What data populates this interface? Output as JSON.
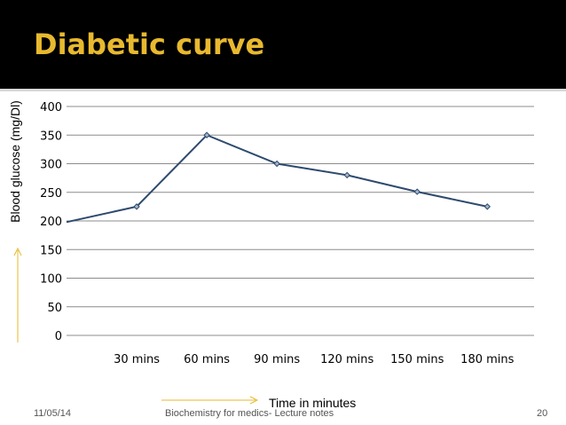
{
  "slide": {
    "title": "Diabetic curve",
    "footer": {
      "date": "11/05/14",
      "center": "Biochemistry for medics- Lecture notes",
      "page": "20"
    }
  },
  "colors": {
    "title_bar": "#000000",
    "title_text": "#e8b92e",
    "line": "#2e4a6e",
    "arrow": "#e8b92e"
  },
  "chart_data": {
    "type": "line",
    "title": "",
    "xlabel": "Time in minutes",
    "ylabel": "Blood glucose (mg/Dl)",
    "categories": [
      "30 mins",
      "60 mins",
      "90 mins",
      "120 mins",
      "150 mins",
      "180 mins"
    ],
    "series": [
      {
        "x": [
          0,
          30,
          60,
          90,
          120,
          150,
          180
        ],
        "values": [
          198,
          225,
          350,
          300,
          280,
          251,
          225
        ]
      }
    ],
    "ylim": [
      0,
      400
    ],
    "yticks": [
      0,
      50,
      100,
      150,
      200,
      250,
      300,
      350,
      400
    ],
    "grid": true,
    "legend": "none"
  }
}
